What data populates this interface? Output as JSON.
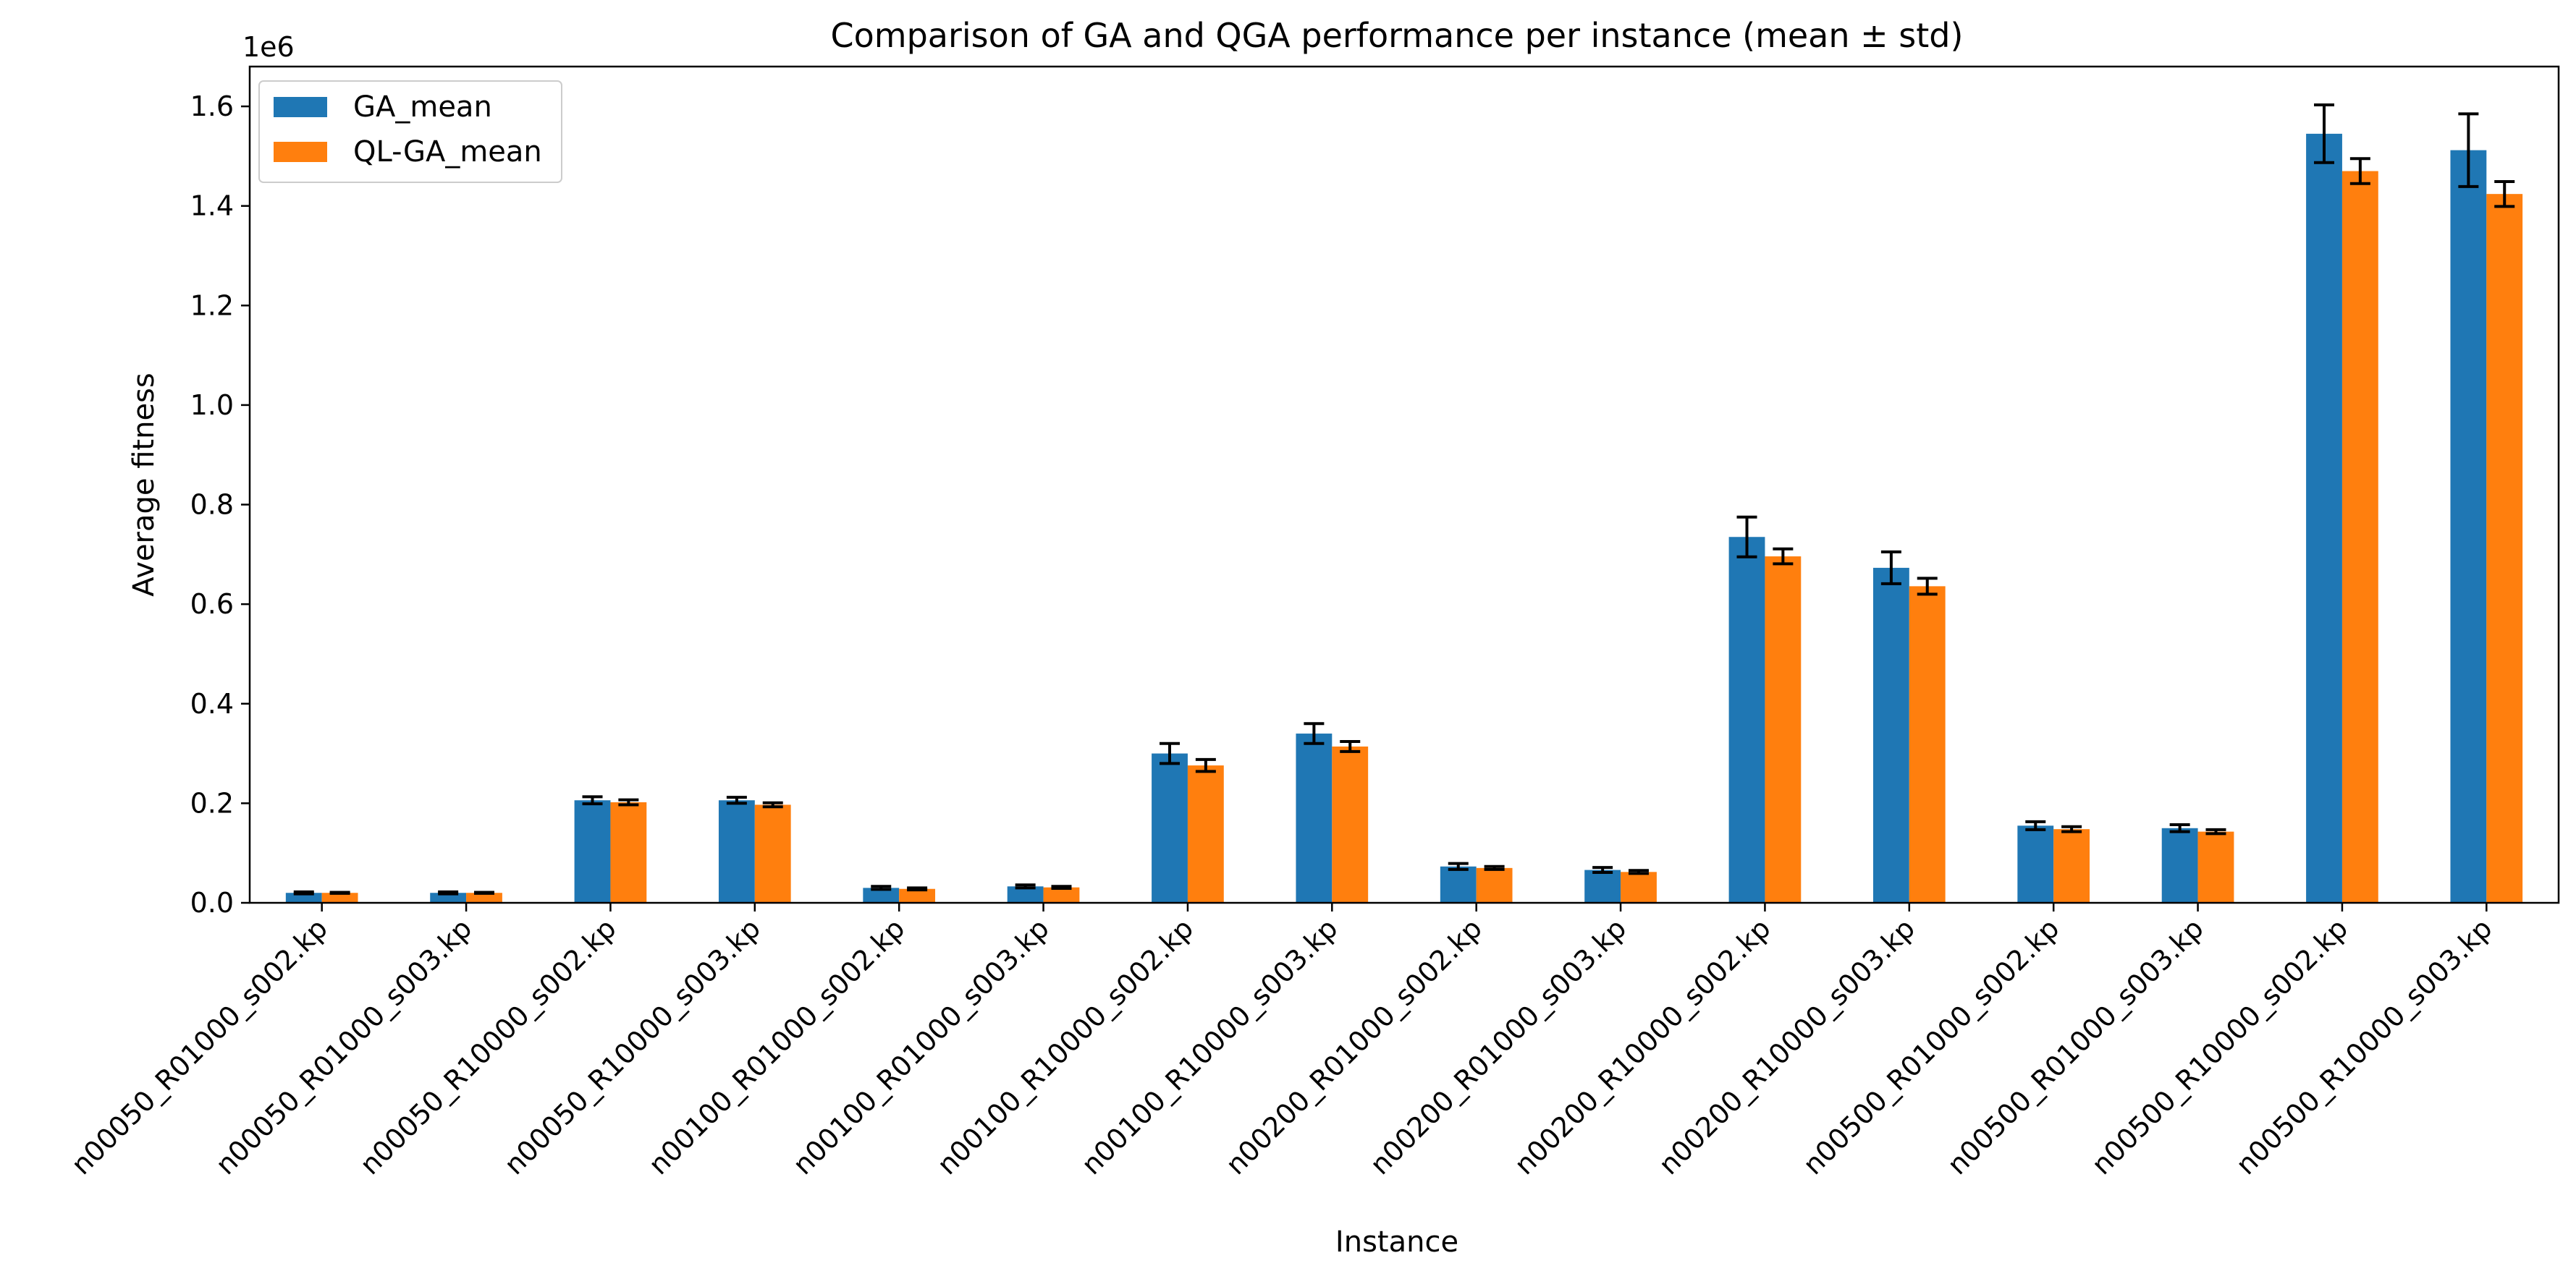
{
  "chart_data": {
    "type": "bar",
    "title": "Comparison of GA and QGA performance per instance (mean ± std)",
    "xlabel": "Instance",
    "ylabel": "Average fitness",
    "y_offset_text": "1e6",
    "ylim": [
      0,
      1.68
    ],
    "y_ticks": [
      0.0,
      0.2,
      0.4,
      0.6,
      0.8,
      1.0,
      1.2,
      1.4,
      1.6
    ],
    "y_tick_labels": [
      "0.0",
      "0.2",
      "0.4",
      "0.6",
      "0.8",
      "1.0",
      "1.2",
      "1.4",
      "1.6"
    ],
    "grid": false,
    "legend_position": "top-left",
    "categories": [
      "n00050_R01000_s002.kp",
      "n00050_R01000_s003.kp",
      "n00050_R10000_s002.kp",
      "n00050_R10000_s003.kp",
      "n00100_R01000_s002.kp",
      "n00100_R01000_s003.kp",
      "n00100_R10000_s002.kp",
      "n00100_R10000_s003.kp",
      "n00200_R01000_s002.kp",
      "n00200_R01000_s003.kp",
      "n00200_R10000_s002.kp",
      "n00200_R10000_s003.kp",
      "n00500_R01000_s002.kp",
      "n00500_R01000_s003.kp",
      "n00500_R10000_s002.kp",
      "n00500_R10000_s003.kp"
    ],
    "series": [
      {
        "name": "GA_mean",
        "color": "#1f77b4",
        "values": [
          0.02,
          0.02,
          0.206,
          0.206,
          0.03,
          0.033,
          0.3,
          0.34,
          0.073,
          0.066,
          0.735,
          0.673,
          0.155,
          0.15,
          1.545,
          1.512
        ],
        "std": [
          0.002,
          0.002,
          0.007,
          0.006,
          0.003,
          0.003,
          0.02,
          0.02,
          0.006,
          0.005,
          0.04,
          0.032,
          0.008,
          0.007,
          0.058,
          0.073
        ]
      },
      {
        "name": "QL-GA_mean",
        "color": "#ff7f0e",
        "values": [
          0.02,
          0.02,
          0.202,
          0.197,
          0.028,
          0.031,
          0.276,
          0.314,
          0.07,
          0.062,
          0.696,
          0.636,
          0.148,
          0.143,
          1.47,
          1.424
        ],
        "std": [
          0.001,
          0.001,
          0.005,
          0.004,
          0.002,
          0.002,
          0.012,
          0.01,
          0.003,
          0.003,
          0.015,
          0.016,
          0.005,
          0.004,
          0.025,
          0.025
        ]
      }
    ]
  }
}
